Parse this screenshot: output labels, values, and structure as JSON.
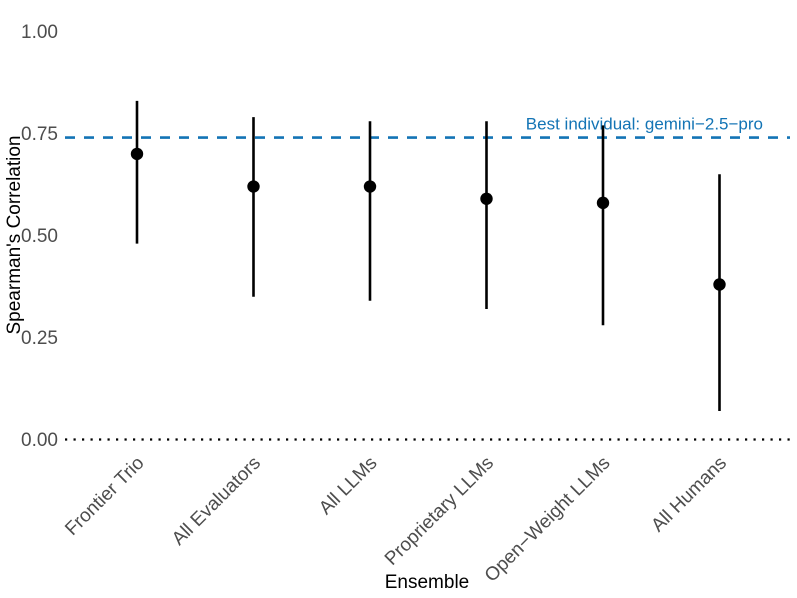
{
  "chart_data": {
    "type": "pointrange",
    "title": "",
    "xlabel": "Ensemble",
    "ylabel": "Spearman's Correlation",
    "ylim": [
      0,
      1
    ],
    "grid": "off",
    "legend": "none",
    "background": "#ffffff",
    "point_color": "#000000",
    "tick_label_color": "#4d4d4d",
    "axis_title_color": "#000000",
    "yticks": [
      {
        "value": 0.0,
        "label": "0.00"
      },
      {
        "value": 0.25,
        "label": "0.25"
      },
      {
        "value": 0.5,
        "label": "0.50"
      },
      {
        "value": 0.75,
        "label": "0.75"
      },
      {
        "value": 1.0,
        "label": "1.00"
      }
    ],
    "categories": [
      "Frontier Trio",
      "All Evaluators",
      "All LLMs",
      "Proprietary LLMs",
      "Open−Weight LLMs",
      "All Humans"
    ],
    "series": [
      {
        "name": "Ensemble Spearman's correlation (point estimate with interval)",
        "points": [
          {
            "category": "Frontier Trio",
            "estimate": 0.7,
            "lower": 0.48,
            "upper": 0.83
          },
          {
            "category": "All Evaluators",
            "estimate": 0.62,
            "lower": 0.35,
            "upper": 0.79
          },
          {
            "category": "All LLMs",
            "estimate": 0.62,
            "lower": 0.34,
            "upper": 0.78
          },
          {
            "category": "Proprietary LLMs",
            "estimate": 0.59,
            "lower": 0.32,
            "upper": 0.78
          },
          {
            "category": "Open−Weight LLMs",
            "estimate": 0.58,
            "lower": 0.28,
            "upper": 0.77
          },
          {
            "category": "All Humans",
            "estimate": 0.38,
            "lower": 0.07,
            "upper": 0.65
          }
        ]
      }
    ],
    "reference_lines": [
      {
        "value": 0.74,
        "style": "dashed",
        "color": "#1374B5",
        "label": "Best individual: gemini−2.5−pro"
      },
      {
        "value": 0.0,
        "style": "dotted",
        "color": "#000000",
        "label": ""
      }
    ]
  }
}
